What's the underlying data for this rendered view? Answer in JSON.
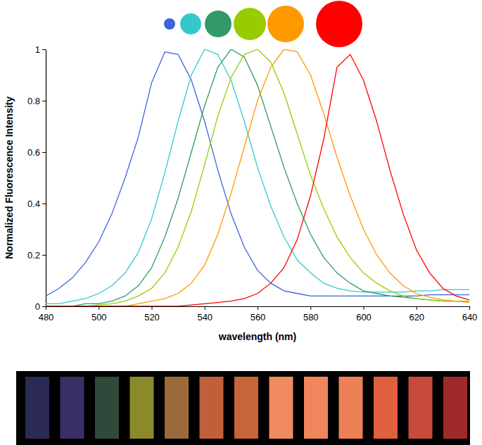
{
  "chart_data": {
    "type": "line",
    "x_label": "wavelength (nm)",
    "y_label": "Normalized Fluorescence Intensity",
    "x": [
      480,
      485,
      490,
      495,
      500,
      505,
      510,
      515,
      520,
      525,
      530,
      535,
      540,
      545,
      550,
      555,
      560,
      565,
      570,
      575,
      580,
      585,
      590,
      595,
      600,
      605,
      610,
      615,
      620,
      625,
      630,
      635,
      640
    ],
    "xlim": [
      480,
      640
    ],
    "xticks": [
      480,
      500,
      520,
      540,
      560,
      580,
      600,
      620,
      640
    ],
    "ylim": [
      0,
      1
    ],
    "yticks": [
      0,
      0.2,
      0.4,
      0.6,
      0.8,
      1
    ],
    "series": [
      {
        "color": "#3d63dd",
        "values": [
          0.04,
          0.07,
          0.11,
          0.17,
          0.25,
          0.36,
          0.5,
          0.66,
          0.87,
          0.99,
          0.98,
          0.88,
          0.72,
          0.53,
          0.36,
          0.23,
          0.14,
          0.09,
          0.06,
          0.05,
          0.04,
          0.04,
          0.04,
          0.04,
          0.04,
          0.04,
          0.04,
          0.04,
          0.04,
          0.045,
          0.045,
          0.045,
          0.045
        ]
      },
      {
        "color": "#33c9cc",
        "values": [
          0.01,
          0.01,
          0.02,
          0.03,
          0.05,
          0.08,
          0.13,
          0.21,
          0.34,
          0.52,
          0.72,
          0.9,
          1.0,
          0.98,
          0.88,
          0.72,
          0.54,
          0.39,
          0.27,
          0.18,
          0.13,
          0.09,
          0.07,
          0.06,
          0.055,
          0.055,
          0.055,
          0.055,
          0.06,
          0.06,
          0.065,
          0.065,
          0.065
        ]
      },
      {
        "color": "#339966",
        "values": [
          0,
          0,
          0,
          0.01,
          0.01,
          0.02,
          0.04,
          0.08,
          0.15,
          0.27,
          0.42,
          0.6,
          0.78,
          0.93,
          1.0,
          0.97,
          0.86,
          0.7,
          0.54,
          0.4,
          0.28,
          0.19,
          0.13,
          0.09,
          0.06,
          0.05,
          0.04,
          0.035,
          0.03,
          0.025,
          0.02,
          0.02,
          0.02
        ]
      },
      {
        "color": "#99cc00",
        "values": [
          0,
          0,
          0,
          0,
          0.005,
          0.01,
          0.02,
          0.04,
          0.07,
          0.13,
          0.23,
          0.37,
          0.55,
          0.74,
          0.89,
          0.98,
          1.0,
          0.95,
          0.83,
          0.67,
          0.51,
          0.38,
          0.27,
          0.19,
          0.13,
          0.09,
          0.06,
          0.04,
          0.03,
          0.025,
          0.02,
          0.02,
          0.02
        ]
      },
      {
        "color": "#ff9900",
        "values": [
          0,
          0,
          0,
          0,
          0,
          0,
          0,
          0.01,
          0.02,
          0.03,
          0.05,
          0.09,
          0.16,
          0.28,
          0.44,
          0.62,
          0.8,
          0.93,
          1.0,
          0.99,
          0.9,
          0.75,
          0.58,
          0.43,
          0.3,
          0.2,
          0.13,
          0.08,
          0.05,
          0.035,
          0.025,
          0.02,
          0.015
        ]
      },
      {
        "color": "#ff0000",
        "values": [
          0,
          0,
          0,
          0,
          0,
          0,
          0,
          0,
          0,
          0,
          0,
          0.005,
          0.01,
          0.015,
          0.02,
          0.03,
          0.05,
          0.09,
          0.15,
          0.26,
          0.43,
          0.65,
          0.93,
          0.98,
          0.88,
          0.72,
          0.53,
          0.36,
          0.22,
          0.13,
          0.07,
          0.04,
          0.025
        ]
      }
    ]
  }
}
